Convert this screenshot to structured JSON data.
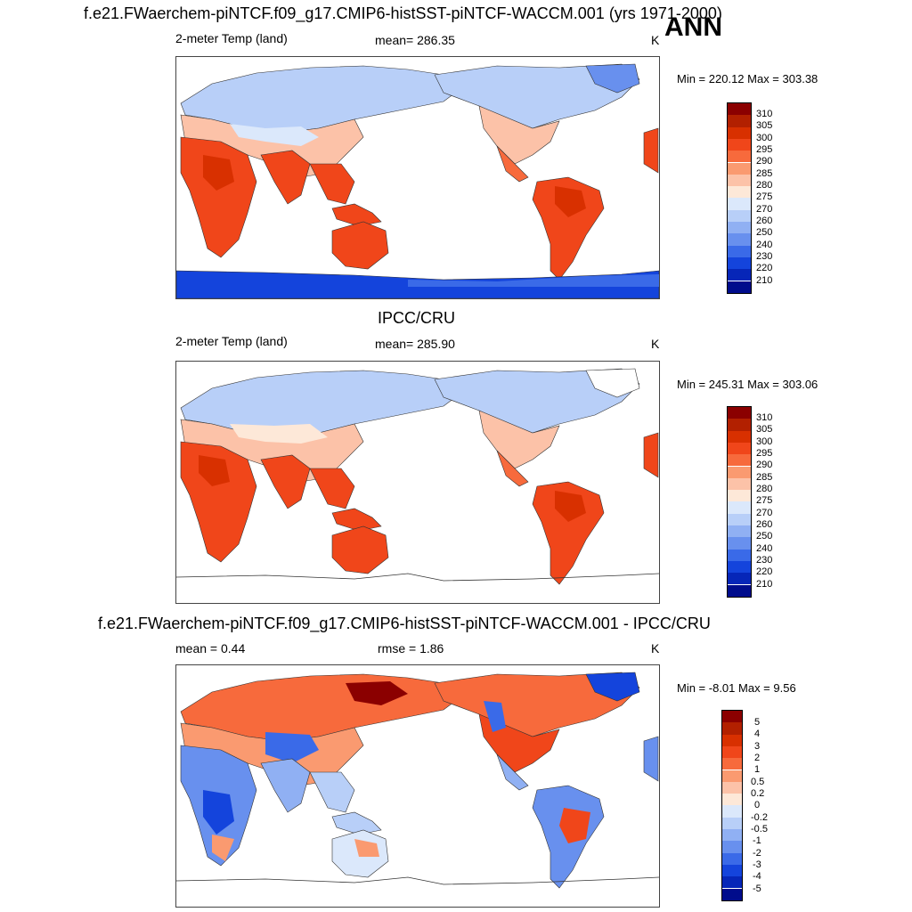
{
  "header": {
    "main_title": "f.e21.FWaerchem-piNTCF.f09_g17.CMIP6-histSST-piNTCF-WACCM.001 (yrs 1971-2000)",
    "season": "ANN"
  },
  "panels": [
    {
      "variable": "2-meter Temp (land)",
      "stat1": "mean= 286.35",
      "units": "K",
      "minmax": "Min = 220.12 Max = 303.38",
      "colorbar": {
        "labels": [
          "310",
          "305",
          "300",
          "295",
          "290",
          "285",
          "280",
          "275",
          "270",
          "260",
          "250",
          "240",
          "230",
          "220",
          "210"
        ],
        "colors": [
          "#8b0000",
          "#b22000",
          "#d83000",
          "#f0461a",
          "#f76a3c",
          "#fa9a70",
          "#fcc2a8",
          "#fde8d8",
          "#dbe8fb",
          "#b8cff8",
          "#90b0f3",
          "#6890ee",
          "#3a6ae8",
          "#1444dc",
          "#0626b8",
          "#000c8c"
        ]
      }
    },
    {
      "title": "IPCC/CRU",
      "variable": "2-meter Temp (land)",
      "stat1": "mean= 285.90",
      "units": "K",
      "minmax": "Min = 245.31 Max = 303.06",
      "colorbar": {
        "labels": [
          "310",
          "305",
          "300",
          "295",
          "290",
          "285",
          "280",
          "275",
          "270",
          "260",
          "250",
          "240",
          "230",
          "220",
          "210"
        ],
        "colors": [
          "#8b0000",
          "#b22000",
          "#d83000",
          "#f0461a",
          "#f76a3c",
          "#fa9a70",
          "#fcc2a8",
          "#fde8d8",
          "#dbe8fb",
          "#b8cff8",
          "#90b0f3",
          "#6890ee",
          "#3a6ae8",
          "#1444dc",
          "#0626b8",
          "#000c8c"
        ]
      }
    },
    {
      "title": "f.e21.FWaerchem-piNTCF.f09_g17.CMIP6-histSST-piNTCF-WACCM.001 - IPCC/CRU",
      "stat1": "mean =   0.44",
      "stat2": "rmse =   1.86",
      "units": "K",
      "minmax": "Min =  -8.01 Max =   9.56",
      "colorbar": {
        "labels": [
          "5",
          "4",
          "3",
          "2",
          "1",
          "0.5",
          "0.2",
          "0",
          "-0.2",
          "-0.5",
          "-1",
          "-2",
          "-3",
          "-4",
          "-5"
        ],
        "colors": [
          "#8b0000",
          "#b22000",
          "#d83000",
          "#f0461a",
          "#f76a3c",
          "#fa9a70",
          "#fcc2a8",
          "#fde8d8",
          "#dbe8fb",
          "#b8cff8",
          "#90b0f3",
          "#6890ee",
          "#3a6ae8",
          "#1444dc",
          "#0626b8",
          "#000c8c"
        ]
      }
    }
  ]
}
